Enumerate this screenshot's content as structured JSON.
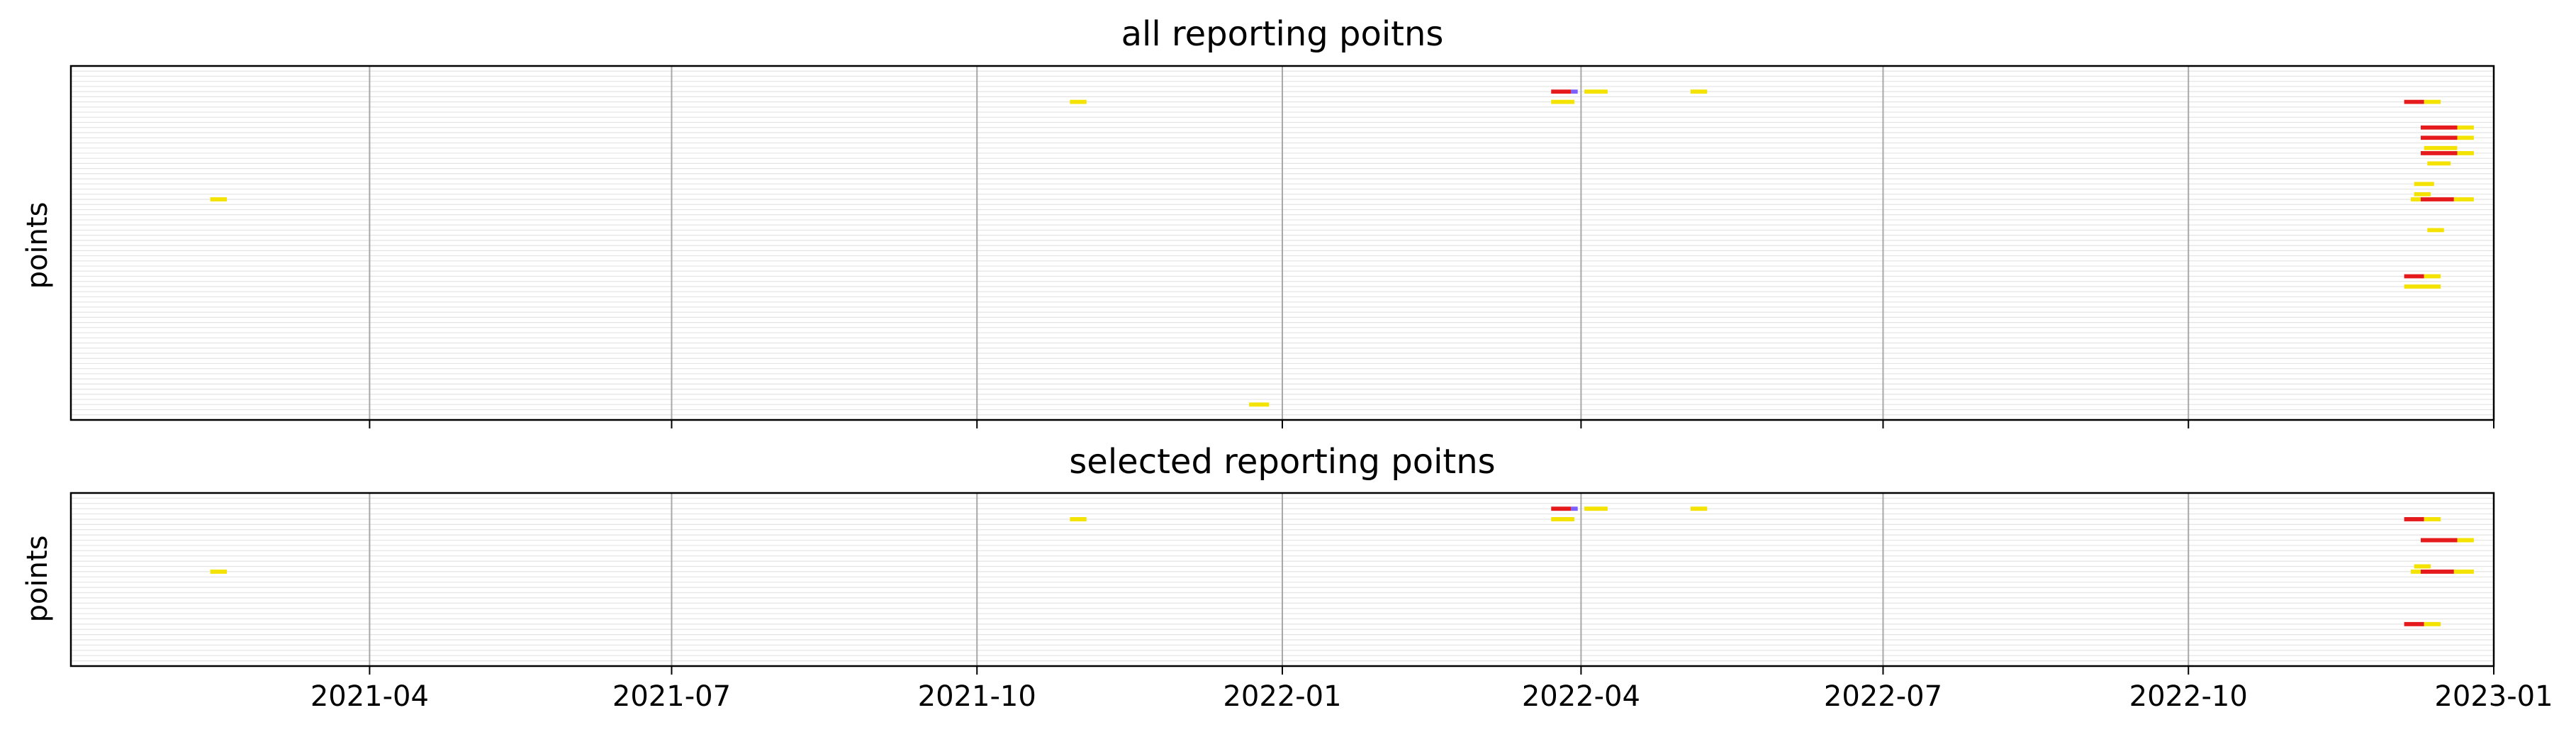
{
  "chart_data": [
    {
      "type": "timeline",
      "title": "all reporting poitns",
      "ylabel": "points",
      "xlabel": "",
      "xlim": [
        "2021-01-01",
        "2023-01-01"
      ],
      "x_tick_labels": [
        "2021-04",
        "2021-07",
        "2021-10",
        "2022-01",
        "2022-04",
        "2022-07",
        "2022-10",
        "2023-01"
      ],
      "x_tick_labels_visible": false,
      "row_count": 68,
      "grid": "vertical at ticks; faint horizontal row lines",
      "colors": {
        "yellow": "#f4e300",
        "red": "#e41a1c",
        "blue": "#7b61ff"
      },
      "segments": [
        {
          "row": 4,
          "start": "2022-03-23",
          "end": "2022-03-29",
          "color": "red"
        },
        {
          "row": 4,
          "start": "2022-03-29",
          "end": "2022-03-31",
          "color": "blue"
        },
        {
          "row": 4,
          "start": "2022-04-02",
          "end": "2022-04-09",
          "color": "yellow"
        },
        {
          "row": 4,
          "start": "2022-05-04",
          "end": "2022-05-09",
          "color": "yellow"
        },
        {
          "row": 6,
          "start": "2021-10-29",
          "end": "2021-11-03",
          "color": "yellow"
        },
        {
          "row": 6,
          "start": "2022-03-23",
          "end": "2022-03-30",
          "color": "yellow"
        },
        {
          "row": 6,
          "start": "2022-12-05",
          "end": "2022-12-11",
          "color": "red"
        },
        {
          "row": 6,
          "start": "2022-12-11",
          "end": "2022-12-16",
          "color": "yellow"
        },
        {
          "row": 11,
          "start": "2022-12-10",
          "end": "2022-12-21",
          "color": "red"
        },
        {
          "row": 11,
          "start": "2022-12-21",
          "end": "2022-12-26",
          "color": "yellow"
        },
        {
          "row": 13,
          "start": "2022-12-10",
          "end": "2022-12-21",
          "color": "red"
        },
        {
          "row": 13,
          "start": "2022-12-21",
          "end": "2022-12-26",
          "color": "yellow"
        },
        {
          "row": 15,
          "start": "2022-12-11",
          "end": "2022-12-21",
          "color": "yellow"
        },
        {
          "row": 16,
          "start": "2022-12-10",
          "end": "2022-12-21",
          "color": "red"
        },
        {
          "row": 16,
          "start": "2022-12-21",
          "end": "2022-12-26",
          "color": "yellow"
        },
        {
          "row": 18,
          "start": "2022-12-12",
          "end": "2022-12-19",
          "color": "yellow"
        },
        {
          "row": 22,
          "start": "2022-12-08",
          "end": "2022-12-14",
          "color": "yellow"
        },
        {
          "row": 24,
          "start": "2022-12-08",
          "end": "2022-12-13",
          "color": "yellow"
        },
        {
          "row": 25,
          "start": "2021-02-12",
          "end": "2021-02-17",
          "color": "yellow"
        },
        {
          "row": 25,
          "start": "2022-12-07",
          "end": "2022-12-10",
          "color": "yellow"
        },
        {
          "row": 25,
          "start": "2022-12-10",
          "end": "2022-12-20",
          "color": "red"
        },
        {
          "row": 25,
          "start": "2022-12-20",
          "end": "2022-12-26",
          "color": "yellow"
        },
        {
          "row": 31,
          "start": "2022-12-12",
          "end": "2022-12-17",
          "color": "yellow"
        },
        {
          "row": 40,
          "start": "2022-12-05",
          "end": "2022-12-11",
          "color": "red"
        },
        {
          "row": 40,
          "start": "2022-12-11",
          "end": "2022-12-16",
          "color": "yellow"
        },
        {
          "row": 42,
          "start": "2022-12-05",
          "end": "2022-12-16",
          "color": "yellow"
        },
        {
          "row": 65,
          "start": "2021-12-22",
          "end": "2021-12-28",
          "color": "yellow"
        }
      ]
    },
    {
      "type": "timeline",
      "title": "selected reporting poitns",
      "ylabel": "points",
      "xlabel": "",
      "xlim": [
        "2021-01-01",
        "2023-01-01"
      ],
      "x_tick_labels": [
        "2021-04",
        "2021-07",
        "2021-10",
        "2022-01",
        "2022-04",
        "2022-07",
        "2022-10",
        "2023-01"
      ],
      "x_tick_labels_visible": true,
      "row_count": 32,
      "grid": "vertical at ticks; faint horizontal row lines",
      "colors": {
        "yellow": "#f4e300",
        "red": "#e41a1c",
        "blue": "#7b61ff"
      },
      "segments": [
        {
          "row": 2,
          "start": "2022-03-23",
          "end": "2022-03-29",
          "color": "red"
        },
        {
          "row": 2,
          "start": "2022-03-29",
          "end": "2022-03-31",
          "color": "blue"
        },
        {
          "row": 2,
          "start": "2022-04-02",
          "end": "2022-04-09",
          "color": "yellow"
        },
        {
          "row": 2,
          "start": "2022-05-04",
          "end": "2022-05-09",
          "color": "yellow"
        },
        {
          "row": 4,
          "start": "2021-10-29",
          "end": "2021-11-03",
          "color": "yellow"
        },
        {
          "row": 4,
          "start": "2022-03-23",
          "end": "2022-03-30",
          "color": "yellow"
        },
        {
          "row": 4,
          "start": "2022-12-05",
          "end": "2022-12-11",
          "color": "red"
        },
        {
          "row": 4,
          "start": "2022-12-11",
          "end": "2022-12-16",
          "color": "yellow"
        },
        {
          "row": 8,
          "start": "2022-12-10",
          "end": "2022-12-21",
          "color": "red"
        },
        {
          "row": 8,
          "start": "2022-12-21",
          "end": "2022-12-26",
          "color": "yellow"
        },
        {
          "row": 13,
          "start": "2022-12-08",
          "end": "2022-12-13",
          "color": "yellow"
        },
        {
          "row": 14,
          "start": "2021-02-12",
          "end": "2021-02-17",
          "color": "yellow"
        },
        {
          "row": 14,
          "start": "2022-12-07",
          "end": "2022-12-10",
          "color": "yellow"
        },
        {
          "row": 14,
          "start": "2022-12-10",
          "end": "2022-12-20",
          "color": "red"
        },
        {
          "row": 14,
          "start": "2022-12-20",
          "end": "2022-12-26",
          "color": "yellow"
        },
        {
          "row": 24,
          "start": "2022-12-05",
          "end": "2022-12-11",
          "color": "red"
        },
        {
          "row": 24,
          "start": "2022-12-11",
          "end": "2022-12-16",
          "color": "yellow"
        }
      ]
    }
  ]
}
